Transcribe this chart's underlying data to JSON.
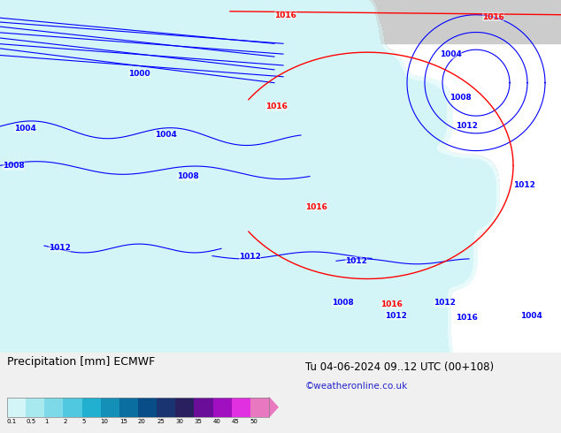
{
  "title_left": "Precipitation [mm] ECMWF",
  "title_right": "Tu 04-06-2024 09..12 UTC (00+108)",
  "subtitle_right": "©weatheronline.co.uk",
  "colorbar_labels": [
    "0.1",
    "0.5",
    "1",
    "2",
    "5",
    "10",
    "15",
    "20",
    "25",
    "30",
    "35",
    "40",
    "45",
    "50"
  ],
  "colorbar_colors": [
    "#d4f5f7",
    "#a8e8ef",
    "#7dd8e8",
    "#4fc8e0",
    "#22b0d0",
    "#1490b8",
    "#0a6ea0",
    "#084c88",
    "#1a3472",
    "#2a2060",
    "#6a0e9a",
    "#a010c0",
    "#e030e0",
    "#e878c0"
  ],
  "map_bg_green": "#c8e6c9",
  "map_bg_gray": "#cccccc",
  "figure_bg": "#ffffff",
  "bottom_bg": "#f0f0f0"
}
